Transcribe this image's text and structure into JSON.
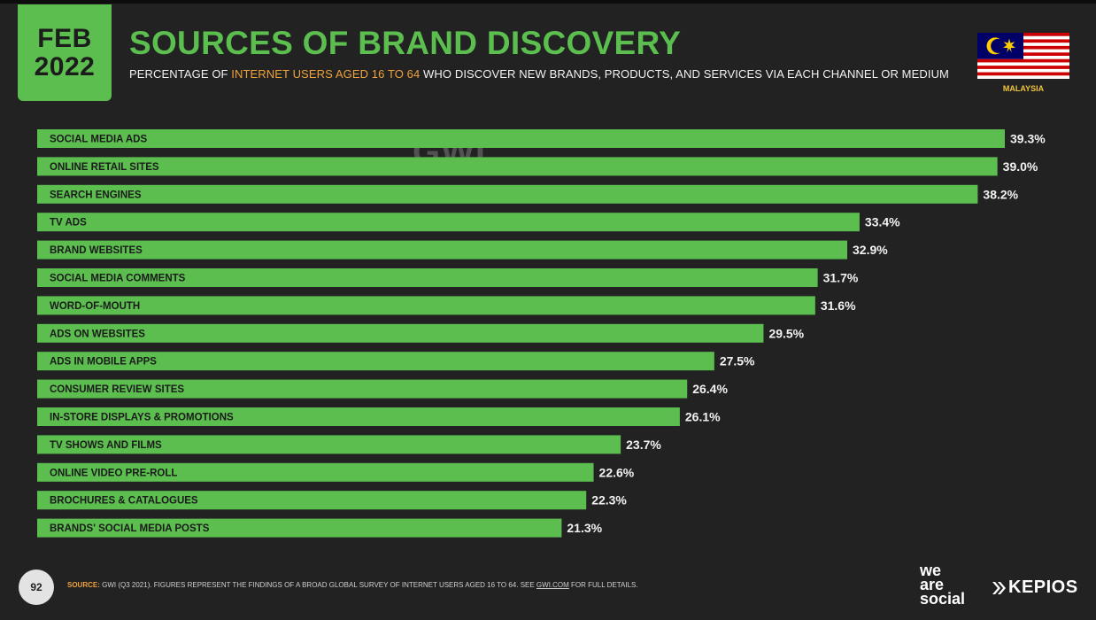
{
  "header": {
    "badge_month": "FEB",
    "badge_year": "2022",
    "title": "SOURCES OF BRAND DISCOVERY",
    "subtitle_pre": "PERCENTAGE OF ",
    "subtitle_highlight": "INTERNET USERS AGED 16 TO 64",
    "subtitle_post": " WHO DISCOVER NEW BRANDS, PRODUCTS, AND SERVICES VIA EACH CHANNEL OR MEDIUM",
    "country": "MALAYSIA"
  },
  "watermark": "GWI.",
  "footer": {
    "page_number": "92",
    "source_key": "SOURCE:",
    "source_text": " GWI (Q3 2021). FIGURES REPRESENT THE FINDINGS OF A BROAD GLOBAL SURVEY OF INTERNET USERS AGED 16 TO 64. SEE ",
    "source_link": "GWI.COM",
    "source_tail": " FOR FULL DETAILS.",
    "brand_line1": "we",
    "brand_line2": "are",
    "brand_line3": "social",
    "partner": "KEPIOS"
  },
  "colors": {
    "accent_green": "#5bbe4f",
    "highlight_orange": "#f0a23a",
    "background": "#222223"
  },
  "chart_data": {
    "type": "bar",
    "orientation": "horizontal",
    "categories": [
      "SOCIAL MEDIA ADS",
      "ONLINE RETAIL SITES",
      "SEARCH ENGINES",
      "TV ADS",
      "BRAND WEBSITES",
      "SOCIAL MEDIA COMMENTS",
      "WORD-OF-MOUTH",
      "ADS ON WEBSITES",
      "ADS IN MOBILE APPS",
      "CONSUMER REVIEW SITES",
      "IN-STORE DISPLAYS & PROMOTIONS",
      "TV SHOWS AND FILMS",
      "ONLINE VIDEO PRE-ROLL",
      "BROCHURES & CATALOGUES",
      "BRANDS' SOCIAL MEDIA POSTS"
    ],
    "values": [
      39.3,
      39.0,
      38.2,
      33.4,
      32.9,
      31.7,
      31.6,
      29.5,
      27.5,
      26.4,
      26.1,
      23.7,
      22.6,
      22.3,
      21.3
    ],
    "value_labels": [
      "39.3%",
      "39.0%",
      "38.2%",
      "33.4%",
      "32.9%",
      "31.7%",
      "31.6%",
      "29.5%",
      "27.5%",
      "26.4%",
      "26.1%",
      "23.7%",
      "22.6%",
      "22.3%",
      "21.3%"
    ],
    "unit": "%",
    "grid": false,
    "legend": "none"
  }
}
